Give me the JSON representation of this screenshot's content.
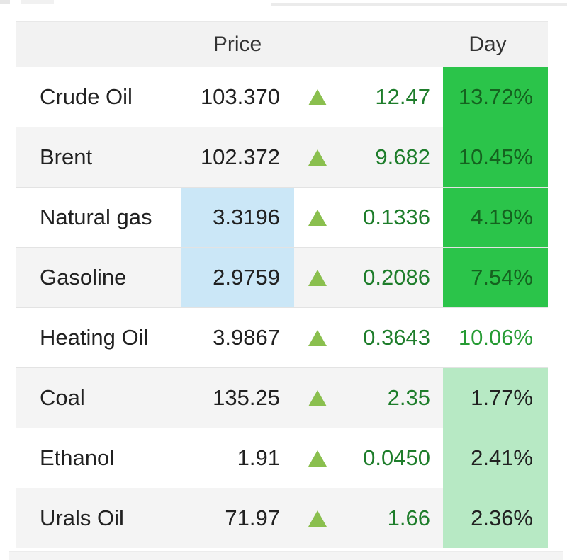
{
  "header": {
    "price_label": "Price",
    "day_label": "Day"
  },
  "rows": [
    {
      "name": "Crude Oil",
      "price": "103.370",
      "change": "12.47",
      "day": "13.72%",
      "price_highlight": false,
      "day_style": "strong"
    },
    {
      "name": "Brent",
      "price": "102.372",
      "change": "9.682",
      "day": "10.45%",
      "price_highlight": false,
      "day_style": "strong"
    },
    {
      "name": "Natural gas",
      "price": "3.3196",
      "change": "0.1336",
      "day": "4.19%",
      "price_highlight": true,
      "day_style": "strong"
    },
    {
      "name": "Gasoline",
      "price": "2.9759",
      "change": "0.2086",
      "day": "7.54%",
      "price_highlight": true,
      "day_style": "strong"
    },
    {
      "name": "Heating Oil",
      "price": "3.9867",
      "change": "0.3643",
      "day": "10.06%",
      "price_highlight": false,
      "day_style": "plain"
    },
    {
      "name": "Coal",
      "price": "135.25",
      "change": "2.35",
      "day": "1.77%",
      "price_highlight": false,
      "day_style": "light"
    },
    {
      "name": "Ethanol",
      "price": "1.91",
      "change": "0.0450",
      "day": "2.41%",
      "price_highlight": false,
      "day_style": "light"
    },
    {
      "name": "Urals Oil",
      "price": "71.97",
      "change": "1.66",
      "day": "2.36%",
      "price_highlight": false,
      "day_style": "light"
    }
  ],
  "icons": {
    "direction_icon": "triangle-up"
  },
  "colors": {
    "day_strong_bg": "#2bc44a",
    "day_strong_text": "#15621f",
    "day_light_bg": "#b7e9c4",
    "day_plain_text": "#259b33",
    "change_text": "#1e7d2b",
    "arrow_green": "#8abf4e",
    "price_highlight_bg": "#cbe7f7",
    "header_bg": "#f2f2f2",
    "row_alt_bg": "#f4f4f4",
    "divider": "#e3e3e3",
    "text_dark": "#212121"
  }
}
